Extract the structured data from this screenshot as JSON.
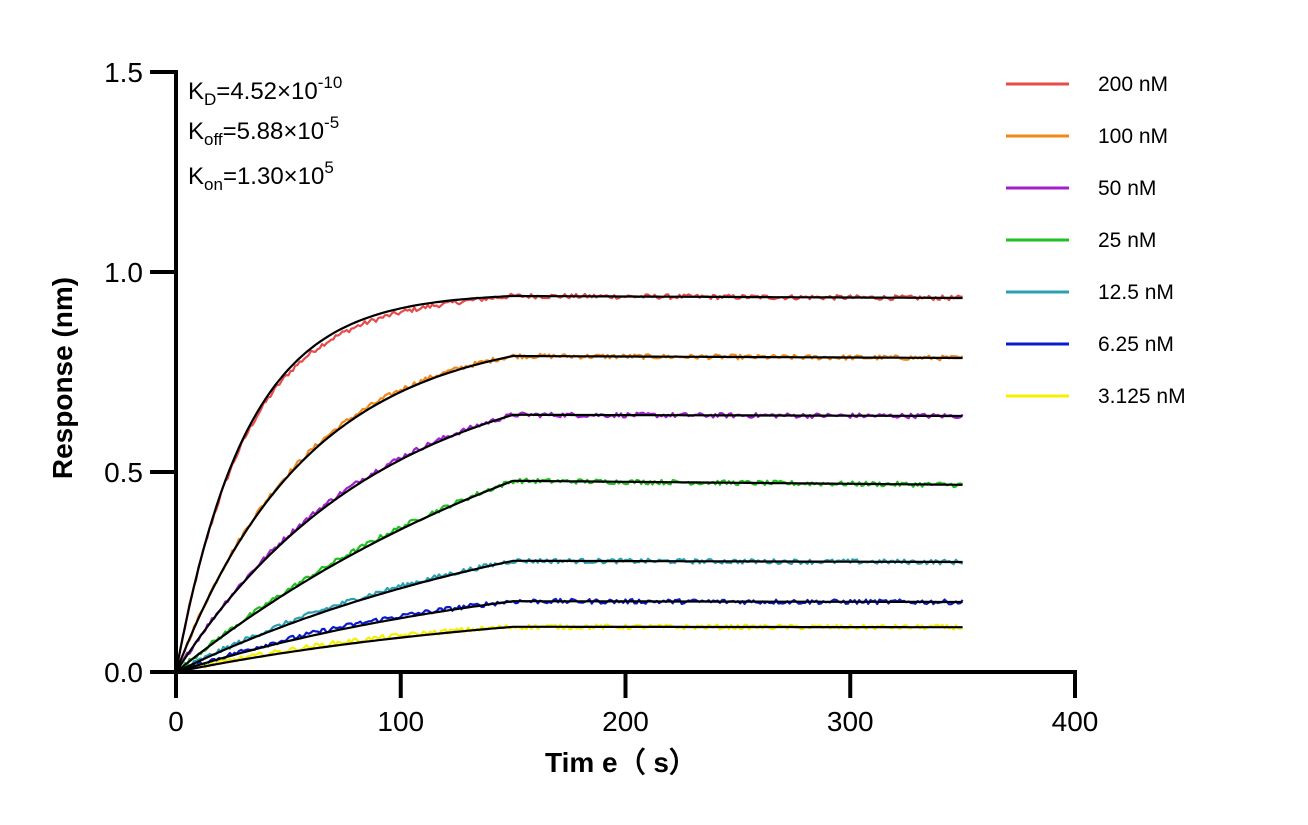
{
  "chart_data": {
    "type": "line",
    "title": "",
    "xlabel": "Tim e（ s）",
    "ylabel": "Response (nm)",
    "xlim": [
      0,
      400
    ],
    "ylim": [
      0,
      1.5
    ],
    "x_ticks": [
      "0",
      "100",
      "200",
      "300",
      "400"
    ],
    "y_ticks": [
      "0.0",
      "0.5",
      "1.0",
      "1.5"
    ],
    "grid": false,
    "legend_position": "top-right",
    "association_end": 150,
    "run_end": 350,
    "fit_color": "#000000",
    "annotations": [
      {
        "main": "K",
        "sub": "D",
        "value": "=4.52×10",
        "exp": "-10"
      },
      {
        "main": "K",
        "sub": "off",
        "value": "=5.88×10",
        "exp": "-5"
      },
      {
        "main": "K",
        "sub": "on",
        "value": "=1.30×10",
        "exp": "5"
      }
    ],
    "series": [
      {
        "name": "200 nM",
        "color": "#e84a4a",
        "plateau": 0.94,
        "end": 0.935
      },
      {
        "name": "100 nM",
        "color": "#f0891a",
        "plateau": 0.79,
        "end": 0.785
      },
      {
        "name": "50 nM",
        "color": "#a020d0",
        "plateau": 0.643,
        "end": 0.64
      },
      {
        "name": "25 nM",
        "color": "#1fc01f",
        "plateau": 0.478,
        "end": 0.468
      },
      {
        "name": "12.5 nM",
        "color": "#2aa0b0",
        "plateau": 0.278,
        "end": 0.275
      },
      {
        "name": "6.25 nM",
        "color": "#0a1acc",
        "plateau": 0.177,
        "end": 0.175
      },
      {
        "name": "3.125 nM",
        "color": "#f5f000",
        "plateau": 0.113,
        "end": 0.112
      }
    ]
  }
}
